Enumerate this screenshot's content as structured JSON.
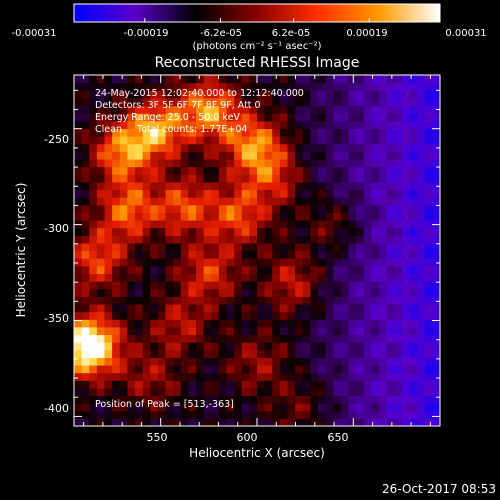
{
  "colorbar": {
    "tick_labels": [
      "-0.00031",
      "-0.00019",
      "-6.2e-05",
      "6.2e-05",
      "0.00019",
      "0.00031"
    ],
    "tick_values": [
      -0.00031,
      -0.00019,
      -6.2e-05,
      6.2e-05,
      0.00019,
      0.00031
    ],
    "range": [
      -0.00031,
      0.00031
    ],
    "unit_label": "(photons cm⁻² s⁻¹ asec⁻²)",
    "colors": [
      "#0000ff",
      "#5a00c8",
      "#000000",
      "#8b0000",
      "#ff3000",
      "#ff9a00",
      "#ffffff"
    ]
  },
  "chart_data": {
    "type": "heatmap",
    "title": "Reconstructed RHESSI Image",
    "xlabel": "Heliocentric X (arcsec)",
    "ylabel": "Heliocentric Y (arcsec)",
    "xlim": [
      505,
      695
    ],
    "ylim": [
      -405,
      -222
    ],
    "xticks": [
      550,
      600,
      650
    ],
    "yticks": [
      -250,
      -300,
      -350,
      -400
    ],
    "grid": false,
    "annotations": [
      "24-May-2015 12:02:40.000 to 12:12:40.000",
      "Detectors: 3F 5F 6F 7F 8F 9F, Att 0",
      "Energy Range: 25.0 - 50.0 keV",
      "Clean     Total counts: 1.77E+04"
    ],
    "peak_label": "Position of Peak = [513,-363]",
    "peak": [
      513,
      -363
    ],
    "sources": [
      {
        "x": 513,
        "y": -363,
        "intensity": 1.0
      },
      {
        "x": 548,
        "y": -250,
        "intensity": 0.6
      },
      {
        "x": 530,
        "y": -262,
        "intensity": 0.55
      },
      {
        "x": 575,
        "y": -240,
        "intensity": 0.6
      },
      {
        "x": 598,
        "y": -258,
        "intensity": 0.55
      },
      {
        "x": 533,
        "y": -292,
        "intensity": 0.5
      },
      {
        "x": 562,
        "y": -290,
        "intensity": 0.45
      },
      {
        "x": 590,
        "y": -295,
        "intensity": 0.45
      },
      {
        "x": 517,
        "y": -318,
        "intensity": 0.45
      },
      {
        "x": 575,
        "y": -325,
        "intensity": 0.4
      },
      {
        "x": 608,
        "y": -275,
        "intensity": 0.35
      },
      {
        "x": 620,
        "y": -330,
        "intensity": 0.35
      },
      {
        "x": 560,
        "y": -352,
        "intensity": 0.3
      },
      {
        "x": 640,
        "y": -300,
        "intensity": 0.3
      },
      {
        "x": 600,
        "y": -372,
        "intensity": 0.25
      },
      {
        "x": 545,
        "y": -380,
        "intensity": 0.25
      },
      {
        "x": 625,
        "y": -395,
        "intensity": 0.2
      }
    ]
  },
  "footer": {
    "timestamp": "26-Oct-2017 08:53"
  }
}
